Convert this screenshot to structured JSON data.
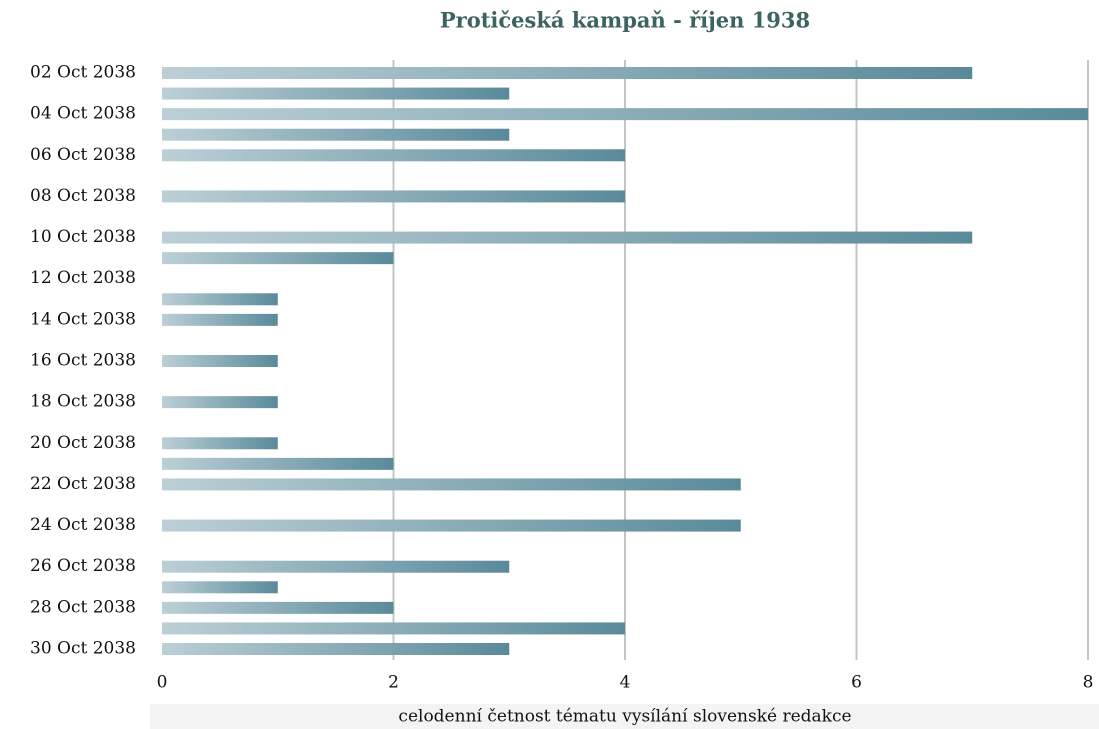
{
  "chart_data": {
    "type": "bar",
    "orientation": "horizontal",
    "title": "Protičeská kampaň - říjen 1938",
    "xlabel": "celodenní četnost tématu vysílání slovenské redakce",
    "x": [
      "2038-10-02",
      "2038-10-03",
      "2038-10-04",
      "2038-10-05",
      "2038-10-06",
      "2038-10-08",
      "2038-10-10",
      "2038-10-11",
      "2038-10-13",
      "2038-10-14",
      "2038-10-16",
      "2038-10-18",
      "2038-10-20",
      "2038-10-21",
      "2038-10-22",
      "2038-10-24",
      "2038-10-26",
      "2038-10-27",
      "2038-10-28",
      "2038-10-29",
      "2038-10-30"
    ],
    "values": [
      7,
      3,
      8,
      3,
      4,
      4,
      7,
      2,
      1,
      1,
      1,
      1,
      1,
      2,
      5,
      5,
      3,
      1,
      2,
      4,
      3
    ],
    "color": "#5a8a9a",
    "xlim": [
      0,
      8
    ],
    "xticks": [
      0,
      2,
      4,
      6,
      8
    ],
    "ylim": [
      "2038-10-02",
      "2038-10-30"
    ],
    "yticks": [
      {
        "value": "2038-10-02",
        "label": "02 Oct 2038"
      },
      {
        "value": "2038-10-04",
        "label": "04 Oct 2038"
      },
      {
        "value": "2038-10-06",
        "label": "06 Oct 2038"
      },
      {
        "value": "2038-10-08",
        "label": "08 Oct 2038"
      },
      {
        "value": "2038-10-10",
        "label": "10 Oct 2038"
      },
      {
        "value": "2038-10-12",
        "label": "12 Oct 2038"
      },
      {
        "value": "2038-10-14",
        "label": "14 Oct 2038"
      },
      {
        "value": "2038-10-16",
        "label": "16 Oct 2038"
      },
      {
        "value": "2038-10-18",
        "label": "18 Oct 2038"
      },
      {
        "value": "2038-10-20",
        "label": "20 Oct 2038"
      },
      {
        "value": "2038-10-22",
        "label": "22 Oct 2038"
      },
      {
        "value": "2038-10-24",
        "label": "24 Oct 2038"
      },
      {
        "value": "2038-10-26",
        "label": "26 Oct 2038"
      },
      {
        "value": "2038-10-28",
        "label": "28 Oct 2038"
      },
      {
        "value": "2038-10-30",
        "label": "30 Oct 2038"
      }
    ],
    "grid": true
  }
}
